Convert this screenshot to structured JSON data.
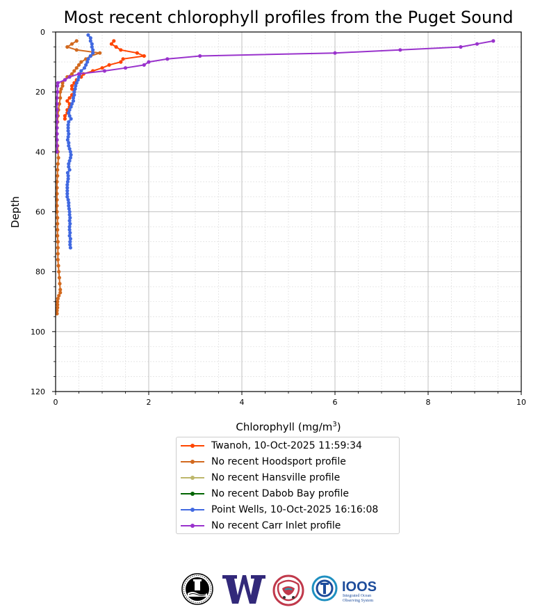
{
  "chart_data": {
    "type": "line",
    "title": "Most recent chlorophyll profiles from the Puget Sound",
    "xlabel": "Chlorophyll (mg/m",
    "xlabel_sup": "3",
    "xlabel_close": ")",
    "ylabel": "Depth",
    "xlim": [
      0,
      10
    ],
    "ylim": [
      120,
      0
    ],
    "y_inverted": true,
    "xticks": [
      0,
      2,
      4,
      6,
      8,
      10
    ],
    "yticks": [
      0,
      20,
      40,
      60,
      80,
      100,
      120
    ],
    "grid": true,
    "legend_position": "below",
    "series": [
      {
        "name": "Twanoh, 10-Oct-2025 11:59:34",
        "color": "#ff4500",
        "points": [
          [
            1.25,
            3
          ],
          [
            1.2,
            4
          ],
          [
            1.3,
            5
          ],
          [
            1.4,
            6
          ],
          [
            1.75,
            7
          ],
          [
            1.9,
            8
          ],
          [
            1.45,
            9
          ],
          [
            1.4,
            10
          ],
          [
            1.15,
            11
          ],
          [
            1.0,
            12
          ],
          [
            0.8,
            13
          ],
          [
            0.6,
            14
          ],
          [
            0.55,
            15
          ],
          [
            0.45,
            16
          ],
          [
            0.4,
            17
          ],
          [
            0.35,
            18
          ],
          [
            0.35,
            19
          ],
          [
            0.4,
            20
          ],
          [
            0.35,
            21
          ],
          [
            0.3,
            22
          ],
          [
            0.25,
            23
          ],
          [
            0.3,
            24
          ],
          [
            0.3,
            25
          ],
          [
            0.25,
            26
          ],
          [
            0.25,
            27
          ],
          [
            0.2,
            28
          ],
          [
            0.2,
            29
          ]
        ]
      },
      {
        "name": "No recent Hoodsport profile",
        "color": "#d2691e",
        "points": [
          [
            0.45,
            3
          ],
          [
            0.35,
            4
          ],
          [
            0.25,
            5
          ],
          [
            0.45,
            6
          ],
          [
            0.95,
            7
          ],
          [
            0.75,
            8
          ],
          [
            0.65,
            9
          ],
          [
            0.55,
            10
          ],
          [
            0.5,
            11
          ],
          [
            0.45,
            12
          ],
          [
            0.4,
            13
          ],
          [
            0.35,
            14
          ],
          [
            0.25,
            15
          ],
          [
            0.2,
            16
          ],
          [
            0.15,
            17
          ],
          [
            0.15,
            18
          ],
          [
            0.12,
            19
          ],
          [
            0.1,
            20
          ],
          [
            0.1,
            22
          ],
          [
            0.08,
            24
          ],
          [
            0.06,
            26
          ],
          [
            0.05,
            28
          ],
          [
            0.04,
            30
          ],
          [
            0.03,
            32
          ],
          [
            0.03,
            34
          ],
          [
            0.03,
            36
          ],
          [
            0.04,
            38
          ],
          [
            0.05,
            40
          ],
          [
            0.06,
            42
          ],
          [
            0.05,
            44
          ],
          [
            0.04,
            46
          ],
          [
            0.04,
            48
          ],
          [
            0.03,
            50
          ],
          [
            0.03,
            52
          ],
          [
            0.03,
            54
          ],
          [
            0.03,
            56
          ],
          [
            0.03,
            58
          ],
          [
            0.03,
            60
          ],
          [
            0.04,
            62
          ],
          [
            0.04,
            64
          ],
          [
            0.04,
            66
          ],
          [
            0.04,
            68
          ],
          [
            0.05,
            70
          ],
          [
            0.05,
            72
          ],
          [
            0.05,
            74
          ],
          [
            0.05,
            76
          ],
          [
            0.06,
            78
          ],
          [
            0.07,
            80
          ],
          [
            0.08,
            82
          ],
          [
            0.09,
            84
          ],
          [
            0.1,
            86
          ],
          [
            0.1,
            87
          ],
          [
            0.07,
            88
          ],
          [
            0.05,
            89
          ],
          [
            0.04,
            90
          ],
          [
            0.04,
            91
          ],
          [
            0.04,
            92
          ],
          [
            0.03,
            93
          ],
          [
            0.03,
            94
          ]
        ]
      },
      {
        "name": "No recent Hansville profile",
        "color": "#bdb76b",
        "points": []
      },
      {
        "name": "No recent Dabob Bay profile",
        "color": "#006400",
        "points": []
      },
      {
        "name": "Point Wells, 10-Oct-2025 16:16:08",
        "color": "#4169e1",
        "points": [
          [
            0.7,
            1
          ],
          [
            0.75,
            2
          ],
          [
            0.75,
            3
          ],
          [
            0.78,
            4
          ],
          [
            0.78,
            5
          ],
          [
            0.8,
            6
          ],
          [
            0.8,
            7
          ],
          [
            0.75,
            8
          ],
          [
            0.7,
            9
          ],
          [
            0.68,
            10
          ],
          [
            0.65,
            11
          ],
          [
            0.62,
            12
          ],
          [
            0.55,
            13
          ],
          [
            0.52,
            14
          ],
          [
            0.5,
            15
          ],
          [
            0.48,
            16
          ],
          [
            0.45,
            17
          ],
          [
            0.43,
            18
          ],
          [
            0.42,
            19
          ],
          [
            0.4,
            20
          ],
          [
            0.4,
            21
          ],
          [
            0.38,
            22
          ],
          [
            0.38,
            23
          ],
          [
            0.35,
            24
          ],
          [
            0.33,
            25
          ],
          [
            0.3,
            26
          ],
          [
            0.28,
            27
          ],
          [
            0.3,
            28
          ],
          [
            0.33,
            29
          ],
          [
            0.28,
            30
          ],
          [
            0.27,
            31
          ],
          [
            0.27,
            32
          ],
          [
            0.27,
            33
          ],
          [
            0.28,
            34
          ],
          [
            0.27,
            35
          ],
          [
            0.26,
            36
          ],
          [
            0.28,
            37
          ],
          [
            0.28,
            38
          ],
          [
            0.3,
            39
          ],
          [
            0.32,
            40
          ],
          [
            0.33,
            41
          ],
          [
            0.32,
            42
          ],
          [
            0.3,
            43
          ],
          [
            0.28,
            44
          ],
          [
            0.28,
            45
          ],
          [
            0.3,
            46
          ],
          [
            0.26,
            47
          ],
          [
            0.27,
            48
          ],
          [
            0.27,
            49
          ],
          [
            0.26,
            50
          ],
          [
            0.25,
            51
          ],
          [
            0.25,
            52
          ],
          [
            0.25,
            53
          ],
          [
            0.25,
            54
          ],
          [
            0.25,
            55
          ],
          [
            0.27,
            56
          ],
          [
            0.28,
            57
          ],
          [
            0.28,
            58
          ],
          [
            0.29,
            59
          ],
          [
            0.3,
            60
          ],
          [
            0.3,
            61
          ],
          [
            0.31,
            62
          ],
          [
            0.3,
            63
          ],
          [
            0.31,
            64
          ],
          [
            0.3,
            65
          ],
          [
            0.3,
            66
          ],
          [
            0.31,
            67
          ],
          [
            0.3,
            68
          ],
          [
            0.32,
            69
          ],
          [
            0.31,
            70
          ],
          [
            0.31,
            71
          ],
          [
            0.32,
            72
          ]
        ]
      },
      {
        "name": "No recent Carr Inlet profile",
        "color": "#9932cc",
        "points": [
          [
            9.4,
            3
          ],
          [
            9.05,
            4
          ],
          [
            8.7,
            5
          ],
          [
            7.4,
            6
          ],
          [
            6.0,
            7
          ],
          [
            3.1,
            8
          ],
          [
            2.4,
            9
          ],
          [
            2.0,
            10
          ],
          [
            1.9,
            11
          ],
          [
            1.5,
            12
          ],
          [
            1.05,
            13
          ],
          [
            0.5,
            14
          ],
          [
            0.3,
            15
          ],
          [
            0.2,
            16
          ],
          [
            0.05,
            17
          ],
          [
            0.04,
            18
          ],
          [
            0.04,
            20
          ],
          [
            0.03,
            22
          ],
          [
            0.03,
            24
          ],
          [
            0.03,
            26
          ],
          [
            0.03,
            28
          ],
          [
            0.03,
            30
          ],
          [
            0.03,
            32
          ],
          [
            0.03,
            34
          ],
          [
            0.03,
            36
          ],
          [
            0.03,
            38
          ],
          [
            0.03,
            40
          ]
        ]
      }
    ]
  },
  "logos": [
    {
      "name": "seal-logo",
      "color": "#000000"
    },
    {
      "name": "university-w-logo",
      "color": "#32297a"
    },
    {
      "name": "regional-emblem-logo",
      "color": "#c0394b"
    },
    {
      "name": "ioos-logo",
      "text": "IOOS",
      "sub1": "Integrated Ocean",
      "sub2": "Observing System",
      "color": "#1d4c9b"
    }
  ]
}
